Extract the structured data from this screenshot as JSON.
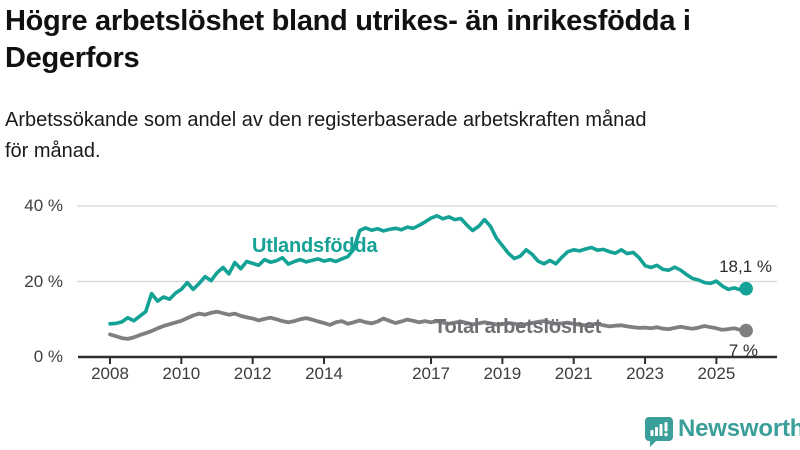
{
  "header": {
    "title_line1": "Högre arbetslöshet bland utrikes- än inrikesfödda i",
    "title_line2": "Degerfors",
    "subtitle_line1": "Arbetssökande som andel av den registerbaserade arbetskraften månad",
    "subtitle_line2": "för månad."
  },
  "colors": {
    "accent_teal": "#13a295",
    "line_gray": "#7f7f82",
    "label_gray": "#6f6f74",
    "grid": "#dcdcdc",
    "axis": "#2e2e2e",
    "tick_text": "#3d3d3d",
    "logo_teal": "#3a9e99"
  },
  "chart_data": {
    "type": "line",
    "title": "Högre arbetslöshet bland utrikes- än inrikesfödda i Degerfors",
    "subtitle": "Arbetssökande som andel av den registerbaserade arbetskraften månad för månad.",
    "unit": "%",
    "x_start_year": 2008.0,
    "x_step_years": 0.166667,
    "x_ticks": [
      2008,
      2010,
      2012,
      2014,
      2017,
      2019,
      2021,
      2023,
      2025
    ],
    "y_ticks": [
      0,
      20,
      40
    ],
    "y_tick_labels": [
      "0 %",
      "20 %",
      "40 %"
    ],
    "ylim": [
      0,
      42
    ],
    "grid": "horizontal",
    "legend_position": "inline-labels",
    "series": [
      {
        "name": "Utlandsfödda",
        "color": "#13a295",
        "end_value": 18.1,
        "end_label": "18,1 %",
        "values": [
          8.8,
          8.9,
          9.3,
          10.4,
          9.6,
          10.8,
          12.0,
          16.8,
          14.8,
          15.9,
          15.3,
          16.9,
          17.9,
          19.7,
          17.9,
          19.5,
          21.3,
          20.2,
          22.3,
          23.7,
          22.0,
          25.0,
          23.4,
          25.3,
          24.8,
          24.3,
          25.8,
          25.1,
          25.5,
          26.3,
          24.6,
          25.3,
          25.8,
          25.2,
          25.6,
          26.0,
          25.4,
          25.8,
          25.3,
          26.0,
          26.6,
          28.5,
          33.5,
          34.2,
          33.6,
          34.0,
          33.4,
          33.8,
          34.1,
          33.7,
          34.4,
          34.1,
          34.9,
          35.8,
          36.8,
          37.4,
          36.6,
          37.1,
          36.4,
          36.7,
          35.0,
          33.5,
          34.6,
          36.4,
          34.6,
          31.5,
          29.5,
          27.5,
          26.1,
          26.7,
          28.4,
          27.2,
          25.4,
          24.7,
          25.6,
          24.7,
          26.4,
          27.9,
          28.4,
          28.1,
          28.6,
          29.0,
          28.3,
          28.5,
          27.9,
          27.5,
          28.4,
          27.4,
          27.7,
          26.3,
          24.2,
          23.7,
          24.3,
          23.2,
          23.0,
          23.8,
          23.0,
          21.8,
          20.8,
          20.4,
          19.7,
          19.5,
          20.1,
          18.8,
          17.9,
          18.3,
          17.8,
          18.1
        ]
      },
      {
        "name": "Total arbetslöshet",
        "color": "#7f7f82",
        "end_value": 7,
        "end_label": "7 %",
        "values": [
          6.0,
          5.5,
          5.0,
          4.8,
          5.2,
          5.8,
          6.3,
          6.9,
          7.6,
          8.2,
          8.7,
          9.1,
          9.6,
          10.3,
          11.0,
          11.5,
          11.2,
          11.7,
          12.0,
          11.6,
          11.2,
          11.5,
          10.9,
          10.5,
          10.2,
          9.7,
          10.1,
          10.4,
          10.0,
          9.5,
          9.2,
          9.5,
          10.0,
          10.3,
          9.9,
          9.4,
          9.0,
          8.5,
          9.2,
          9.5,
          8.8,
          9.2,
          9.7,
          9.2,
          8.9,
          9.4,
          10.2,
          9.6,
          9.0,
          9.4,
          9.9,
          9.6,
          9.2,
          9.5,
          9.2,
          9.5,
          9.1,
          8.8,
          9.1,
          9.4,
          9.0,
          8.6,
          8.9,
          9.2,
          8.9,
          8.6,
          8.7,
          9.0,
          8.8,
          8.5,
          8.7,
          9.0,
          9.3,
          9.5,
          9.1,
          8.8,
          8.9,
          9.1,
          8.8,
          8.5,
          8.4,
          8.6,
          8.8,
          8.4,
          8.1,
          8.3,
          8.4,
          8.1,
          7.9,
          7.7,
          7.8,
          7.6,
          7.9,
          7.5,
          7.4,
          7.7,
          8.0,
          7.7,
          7.5,
          7.8,
          8.2,
          7.9,
          7.6,
          7.2,
          7.4,
          7.6,
          7.2,
          7.0
        ]
      }
    ]
  },
  "footer": {
    "brand": "Newsworthy"
  }
}
